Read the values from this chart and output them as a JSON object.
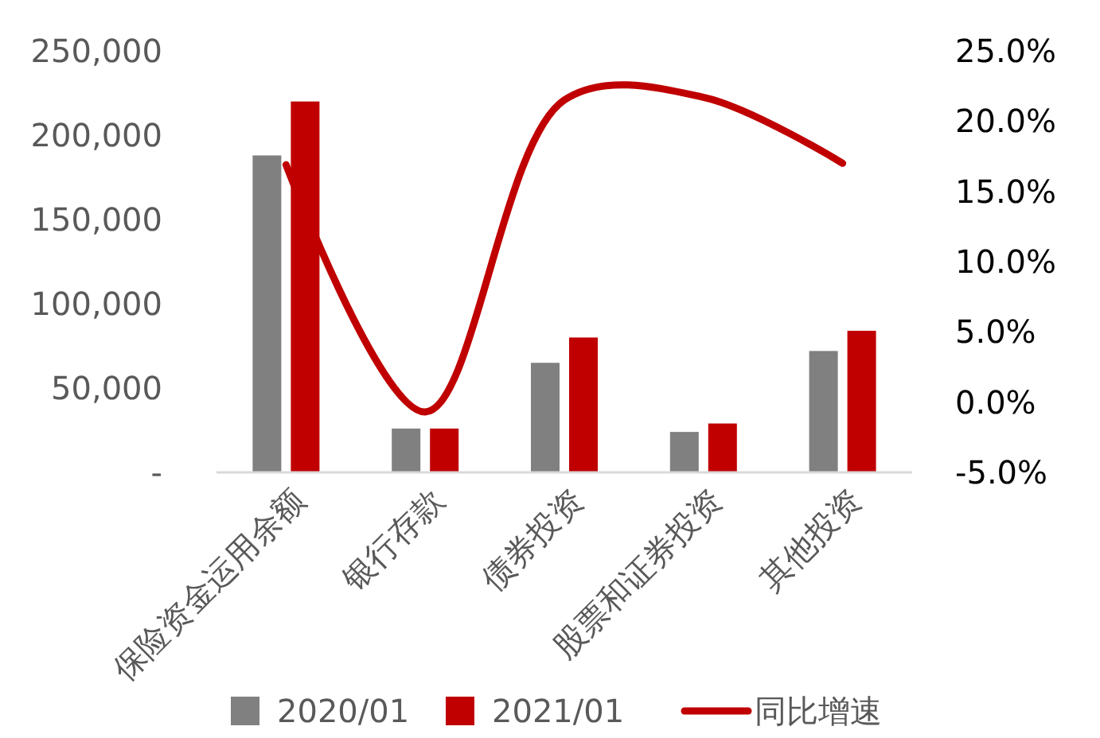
{
  "chart_data": {
    "type": "bar",
    "categories": [
      "保险资金运用余额",
      "银行存款",
      "债券投资",
      "股票和证券投资",
      "其他投资"
    ],
    "series": [
      {
        "name": "2020/01",
        "color": "#808080",
        "values": [
          188000,
          26000,
          65000,
          24000,
          72000
        ]
      },
      {
        "name": "2021/01",
        "color": "#c00000",
        "values": [
          220000,
          26000,
          80000,
          29000,
          84000
        ]
      },
      {
        "name": "同比增速",
        "type": "line",
        "axis": "y2",
        "color": "#c00000",
        "values": [
          16.9,
          -0.7,
          21.5,
          21.7,
          17.0
        ]
      }
    ],
    "ylim": [
      0,
      250000
    ],
    "yticks": [
      {
        "value": 0,
        "label": "-"
      },
      {
        "value": 50000,
        "label": "50,000"
      },
      {
        "value": 100000,
        "label": "100,000"
      },
      {
        "value": 150000,
        "label": "150,000"
      },
      {
        "value": 200000,
        "label": "200,000"
      },
      {
        "value": 250000,
        "label": "250,000"
      }
    ],
    "y2lim": [
      -5,
      25
    ],
    "y2ticks": [
      {
        "value": -5,
        "label": "-5.0%"
      },
      {
        "value": 0,
        "label": "0.0%"
      },
      {
        "value": 5,
        "label": "5.0%"
      },
      {
        "value": 10,
        "label": "10.0%"
      },
      {
        "value": 15,
        "label": "15.0%"
      },
      {
        "value": 20,
        "label": "20.0%"
      },
      {
        "value": 25,
        "label": "25.0%"
      }
    ],
    "legend": "bottom",
    "grid": false
  }
}
